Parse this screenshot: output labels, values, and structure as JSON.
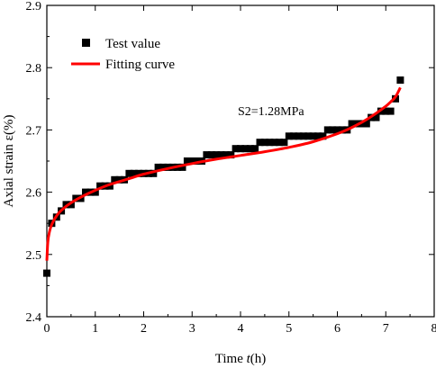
{
  "chart_data": {
    "type": "scatter",
    "x_ticks": [
      "0",
      "1",
      "2",
      "3",
      "4",
      "5",
      "6",
      "7",
      "8"
    ],
    "y_ticks": [
      "2.4",
      "2.5",
      "2.6",
      "2.7",
      "2.8",
      "2.9"
    ],
    "xlim": [
      0,
      8
    ],
    "ylim": [
      2.4,
      2.9
    ],
    "xlabel_prefix": "Time ",
    "xlabel_var": "t",
    "xlabel_suffix": "(h)",
    "ylabel": "Axial strain ε(%)",
    "annotation": "S2=1.28MPa",
    "legend_position": "top-left",
    "grid": false,
    "colors": {
      "points": "#000000",
      "curve": "#ff0000"
    },
    "series": [
      {
        "name": "Test value",
        "kind": "markers",
        "x": [
          0.0,
          0.1,
          0.2,
          0.3,
          0.4,
          0.5,
          0.6,
          0.7,
          0.8,
          0.9,
          1.0,
          1.1,
          1.2,
          1.3,
          1.4,
          1.5,
          1.6,
          1.7,
          1.8,
          1.9,
          2.0,
          2.1,
          2.2,
          2.3,
          2.4,
          2.5,
          2.6,
          2.7,
          2.8,
          2.9,
          3.0,
          3.1,
          3.2,
          3.3,
          3.4,
          3.5,
          3.6,
          3.7,
          3.8,
          3.9,
          4.0,
          4.1,
          4.2,
          4.3,
          4.4,
          4.5,
          4.6,
          4.7,
          4.8,
          4.9,
          5.0,
          5.1,
          5.2,
          5.3,
          5.4,
          5.5,
          5.6,
          5.7,
          5.8,
          5.9,
          6.0,
          6.1,
          6.2,
          6.3,
          6.4,
          6.5,
          6.6,
          6.7,
          6.8,
          6.9,
          7.0,
          7.1,
          7.2,
          7.3
        ],
        "y": [
          2.47,
          2.55,
          2.56,
          2.57,
          2.58,
          2.58,
          2.59,
          2.59,
          2.6,
          2.6,
          2.6,
          2.61,
          2.61,
          2.61,
          2.62,
          2.62,
          2.62,
          2.63,
          2.63,
          2.63,
          2.63,
          2.63,
          2.63,
          2.64,
          2.64,
          2.64,
          2.64,
          2.64,
          2.64,
          2.65,
          2.65,
          2.65,
          2.65,
          2.66,
          2.66,
          2.66,
          2.66,
          2.66,
          2.66,
          2.67,
          2.67,
          2.67,
          2.67,
          2.67,
          2.68,
          2.68,
          2.68,
          2.68,
          2.68,
          2.68,
          2.69,
          2.69,
          2.69,
          2.69,
          2.69,
          2.69,
          2.69,
          2.69,
          2.7,
          2.7,
          2.7,
          2.7,
          2.7,
          2.71,
          2.71,
          2.71,
          2.71,
          2.72,
          2.72,
          2.73,
          2.73,
          2.73,
          2.75,
          2.78
        ]
      },
      {
        "name": "Fitting curve",
        "kind": "line",
        "x": [
          0.0,
          0.02,
          0.05,
          0.1,
          0.2,
          0.3,
          0.5,
          0.75,
          1.0,
          1.25,
          1.5,
          1.75,
          2.0,
          2.5,
          3.0,
          3.5,
          4.0,
          4.5,
          5.0,
          5.5,
          6.0,
          6.25,
          6.5,
          6.75,
          7.0,
          7.1,
          7.2,
          7.3
        ],
        "y": [
          2.49,
          2.52,
          2.535,
          2.548,
          2.562,
          2.571,
          2.583,
          2.594,
          2.603,
          2.611,
          2.617,
          2.623,
          2.629,
          2.638,
          2.646,
          2.653,
          2.659,
          2.665,
          2.672,
          2.681,
          2.694,
          2.702,
          2.712,
          2.724,
          2.738,
          2.745,
          2.753,
          2.768
        ]
      }
    ]
  }
}
